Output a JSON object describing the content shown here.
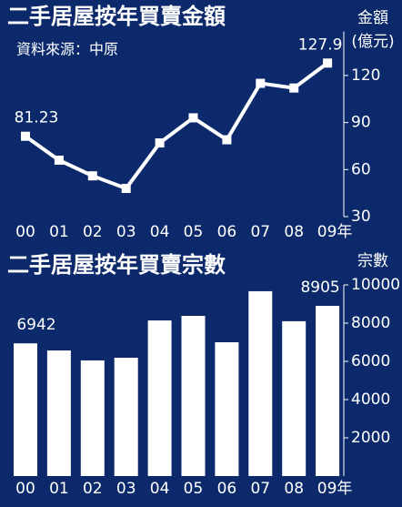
{
  "chart_data": [
    {
      "type": "line",
      "title": "二手居屋按年買賣金額",
      "subtitle": "資料來源：中原",
      "y_label": [
        "金額",
        "(億元)"
      ],
      "categories": [
        "00",
        "01",
        "02",
        "03",
        "04",
        "05",
        "06",
        "07",
        "08",
        "09年"
      ],
      "values": [
        81.23,
        66,
        56,
        48,
        77,
        93,
        79,
        115,
        112,
        127.9
      ],
      "value_labels": [
        "81.23",
        null,
        null,
        null,
        null,
        null,
        null,
        null,
        null,
        "127.9"
      ],
      "color": "#ffffff",
      "ylim": [
        30,
        148
      ],
      "yticks": [
        30,
        60,
        90,
        120
      ]
    },
    {
      "type": "bar",
      "title": "二手居屋按年買賣宗數",
      "y_label": [
        "宗數"
      ],
      "categories": [
        "00",
        "01",
        "02",
        "03",
        "04",
        "05",
        "06",
        "07",
        "08",
        "09年"
      ],
      "values": [
        6942,
        6570,
        6050,
        6190,
        8140,
        8380,
        7000,
        9670,
        8100,
        8905
      ],
      "value_labels": [
        "6942",
        null,
        null,
        null,
        null,
        null,
        null,
        null,
        null,
        "8905"
      ],
      "color": "#ffffff",
      "ylim": [
        0,
        10000
      ],
      "yticks": [
        2000,
        4000,
        6000,
        8000,
        10000
      ]
    }
  ]
}
